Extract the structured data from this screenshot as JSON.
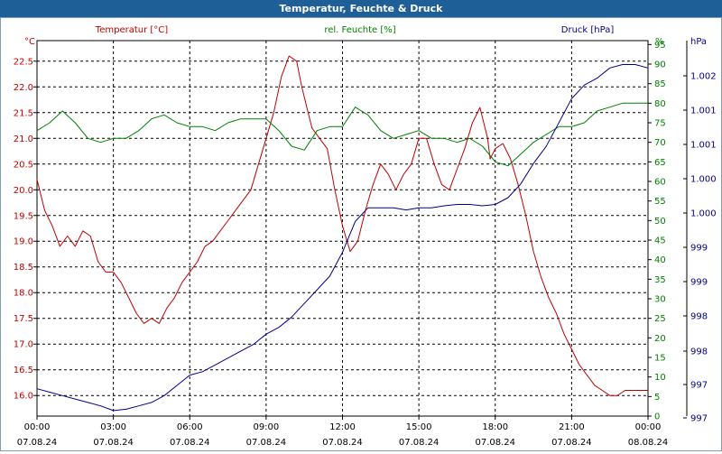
{
  "window": {
    "title": "Temperatur, Feuchte & Druck"
  },
  "chart_data": {
    "type": "line",
    "title": "Temperatur, Feuchte & Druck",
    "grid": true,
    "x": {
      "ticks": [
        "00:00",
        "03:00",
        "06:00",
        "09:00",
        "12:00",
        "15:00",
        "18:00",
        "21:00",
        "00:00"
      ],
      "dates": [
        "07.08.24",
        "07.08.24",
        "07.08.24",
        "07.08.24",
        "07.08.24",
        "07.08.24",
        "07.08.24",
        "07.08.24",
        "08.08.24"
      ],
      "range_hours": [
        0,
        24
      ]
    },
    "axes": {
      "temperature": {
        "label": "Temperatur [°C]",
        "unit": "°C",
        "range": [
          15.6,
          22.9
        ],
        "ticks": [
          "16.0",
          "16.5",
          "17.0",
          "17.5",
          "18.0",
          "18.5",
          "19.0",
          "19.5",
          "20.0",
          "20.5",
          "21.0",
          "21.5",
          "22.0",
          "22.5"
        ],
        "color": "#c00000"
      },
      "humidity": {
        "label": "rel. Feuchte [%]",
        "unit": "%",
        "range": [
          0,
          96
        ],
        "ticks": [
          "0",
          "5",
          "10",
          "15",
          "20",
          "25",
          "30",
          "35",
          "40",
          "45",
          "50",
          "55",
          "60",
          "65",
          "70",
          "75",
          "80",
          "85",
          "90",
          "95",
          "%"
        ],
        "color": "#008000"
      },
      "pressure": {
        "label": "Druck [hPa]",
        "unit": "hPa",
        "range": [
          996.9,
          1002.4
        ],
        "ticks": [
          "997",
          "997",
          "998",
          "998",
          "999",
          "999",
          "1.000",
          "1.000",
          "1.001",
          "1.001",
          "1.002",
          "hPa"
        ],
        "color": "#00008b"
      }
    },
    "series": [
      {
        "name": "Temperatur [°C]",
        "axis": "temperature",
        "color": "#c00000",
        "hours": [
          0,
          0.3,
          0.6,
          0.9,
          1.2,
          1.5,
          1.8,
          2.1,
          2.4,
          2.7,
          3.0,
          3.3,
          3.6,
          3.9,
          4.2,
          4.5,
          4.8,
          5.1,
          5.4,
          5.7,
          6.0,
          6.3,
          6.6,
          6.9,
          7.2,
          7.5,
          7.8,
          8.1,
          8.4,
          8.7,
          9.0,
          9.3,
          9.6,
          9.9,
          10.2,
          10.4,
          10.6,
          10.8,
          11.1,
          11.4,
          11.7,
          12.0,
          12.3,
          12.6,
          12.9,
          13.2,
          13.5,
          13.8,
          14.1,
          14.4,
          14.7,
          15.0,
          15.3,
          15.6,
          15.9,
          16.2,
          16.5,
          16.8,
          17.1,
          17.4,
          17.7,
          17.8,
          18.0,
          18.3,
          18.6,
          18.9,
          19.2,
          19.5,
          19.8,
          20.1,
          20.4,
          20.7,
          21.0,
          21.3,
          21.6,
          21.9,
          22.2,
          22.5,
          22.8,
          23.1,
          23.4,
          23.7,
          24.0
        ],
        "values": [
          20.2,
          19.6,
          19.3,
          18.9,
          19.1,
          18.9,
          19.2,
          19.1,
          18.6,
          18.4,
          18.4,
          18.2,
          17.9,
          17.6,
          17.4,
          17.5,
          17.4,
          17.7,
          17.9,
          18.2,
          18.4,
          18.6,
          18.9,
          19.0,
          19.2,
          19.4,
          19.6,
          19.8,
          20.0,
          20.5,
          21.0,
          21.5,
          22.2,
          22.6,
          22.5,
          22.0,
          21.6,
          21.2,
          21.0,
          20.8,
          20.0,
          19.3,
          18.8,
          19.0,
          19.6,
          20.1,
          20.5,
          20.3,
          20.0,
          20.3,
          20.5,
          21.0,
          21.0,
          20.5,
          20.1,
          20.0,
          20.4,
          20.8,
          21.3,
          21.6,
          21.0,
          20.6,
          20.8,
          20.9,
          20.6,
          20.1,
          19.5,
          18.8,
          18.3,
          17.9,
          17.6,
          17.2,
          16.9,
          16.6,
          16.4,
          16.2,
          16.1,
          16.0,
          16.0,
          16.1,
          16.1,
          16.1,
          16.1
        ]
      },
      {
        "name": "rel. Feuchte [%]",
        "axis": "humidity",
        "color": "#008000",
        "hours": [
          0,
          0.5,
          1.0,
          1.5,
          2.0,
          2.5,
          3.0,
          3.5,
          4.0,
          4.5,
          5.0,
          5.5,
          6.0,
          6.5,
          7.0,
          7.5,
          8.0,
          8.5,
          9.0,
          9.5,
          10.0,
          10.5,
          11.0,
          11.5,
          12.0,
          12.5,
          13.0,
          13.5,
          14.0,
          14.5,
          15.0,
          15.5,
          16.0,
          16.5,
          17.0,
          17.5,
          18.0,
          18.5,
          19.0,
          19.5,
          20.0,
          20.5,
          21.0,
          21.5,
          22.0,
          22.5,
          23.0,
          23.5,
          24.0
        ],
        "values": [
          73,
          75,
          78,
          75,
          71,
          70,
          71,
          71,
          73,
          76,
          77,
          75,
          74,
          74,
          73,
          75,
          76,
          76,
          76,
          73,
          69,
          68,
          73,
          74,
          74,
          79,
          77,
          73,
          71,
          72,
          73,
          71,
          71,
          70,
          71,
          69,
          65,
          64,
          67,
          70,
          72,
          74,
          74,
          75,
          78,
          79,
          80,
          80,
          80
        ]
      },
      {
        "name": "Druck [hPa]",
        "axis": "pressure",
        "color": "#00008b",
        "hours": [
          0,
          0.5,
          1.0,
          1.5,
          2.0,
          2.5,
          3.0,
          3.5,
          4.0,
          4.5,
          5.0,
          5.5,
          6.0,
          6.5,
          7.0,
          7.5,
          8.0,
          8.5,
          9.0,
          9.5,
          10.0,
          10.5,
          11.0,
          11.5,
          12.0,
          12.5,
          13.0,
          13.5,
          14.0,
          14.5,
          15.0,
          15.5,
          16.0,
          16.5,
          17.0,
          17.5,
          18.0,
          18.5,
          19.0,
          19.5,
          20.0,
          20.5,
          21.0,
          21.5,
          22.0,
          22.5,
          23.0,
          23.5,
          24.0
        ],
        "values": [
          997.3,
          997.25,
          997.2,
          997.15,
          997.1,
          997.05,
          996.98,
          997.0,
          997.05,
          997.1,
          997.2,
          997.35,
          997.5,
          997.55,
          997.65,
          997.75,
          997.85,
          997.95,
          998.1,
          998.2,
          998.35,
          998.55,
          998.75,
          998.95,
          999.3,
          999.75,
          999.95,
          999.95,
          999.95,
          999.92,
          999.95,
          999.95,
          999.98,
          1000.0,
          1000.0,
          999.98,
          1000.0,
          1000.1,
          1000.3,
          1000.6,
          1000.85,
          1001.2,
          1001.55,
          1001.75,
          1001.85,
          1002.0,
          1002.05,
          1002.05,
          1002.0
        ]
      }
    ]
  }
}
